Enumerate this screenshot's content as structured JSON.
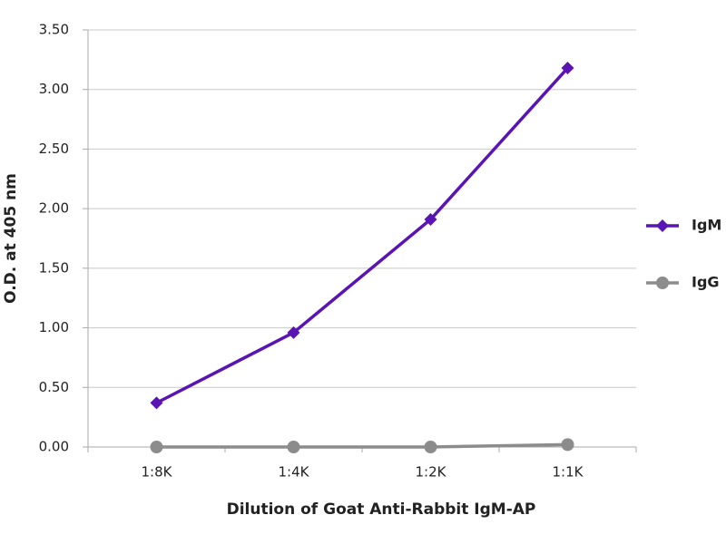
{
  "chart_data": {
    "type": "line",
    "x_label": "Dilution of Goat Anti-Rabbit IgM-AP",
    "y_label": "O.D. at 405 nm",
    "categories": [
      "1:8K",
      "1:4K",
      "1:2K",
      "1:1K"
    ],
    "series": [
      {
        "name": "IgM",
        "color": "#5a14b4",
        "marker": "diamond",
        "values": [
          0.37,
          0.96,
          1.91,
          3.18
        ]
      },
      {
        "name": "IgG",
        "color": "#8c8c8c",
        "marker": "circle",
        "values": [
          0.0,
          0.0,
          0.0,
          0.02
        ]
      }
    ],
    "ylim": [
      0,
      3.5
    ],
    "yticks": [
      {
        "value": 0,
        "label": "0.00"
      },
      {
        "value": 0.5,
        "label": "0.50"
      },
      {
        "value": 1,
        "label": "1.00"
      },
      {
        "value": 1.5,
        "label": "1.50"
      },
      {
        "value": 2,
        "label": "2.00"
      },
      {
        "value": 2.5,
        "label": "2.50"
      },
      {
        "value": 3,
        "label": "3.00"
      },
      {
        "value": 3.5,
        "label": "3.50"
      }
    ],
    "grid": true,
    "legend": "right"
  }
}
